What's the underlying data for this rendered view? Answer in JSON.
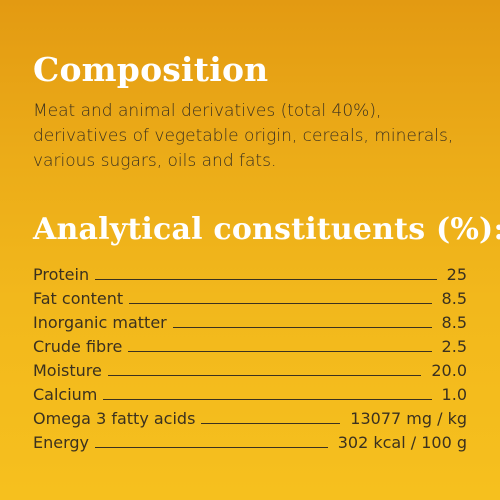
{
  "composition": {
    "heading": "Composition",
    "lines": [
      "Meat and animal derivatives (total 40%),",
      "derivatives of vegetable origin, cereals, minerals,",
      "various sugars, oils and fats."
    ]
  },
  "analytical": {
    "heading": "Analytical constituents (%):",
    "rows": [
      {
        "label": "Protein",
        "value": "25"
      },
      {
        "label": "Fat content",
        "value": "8.5"
      },
      {
        "label": "Inorganic matter",
        "value": "8.5"
      },
      {
        "label": "Crude fibre",
        "value": "2.5"
      },
      {
        "label": "Moisture",
        "value": "20.0"
      },
      {
        "label": "Calcium",
        "value": "1.0"
      },
      {
        "label": "Omega 3 fatty acids",
        "value": "13077 mg / kg"
      },
      {
        "label": "Energy",
        "value": "302 kcal / 100 g"
      }
    ]
  },
  "colors": {
    "heading": "#ffffff",
    "text": "#3b311f",
    "background_top": "#e39a12",
    "background_bottom": "#f6c01e"
  }
}
